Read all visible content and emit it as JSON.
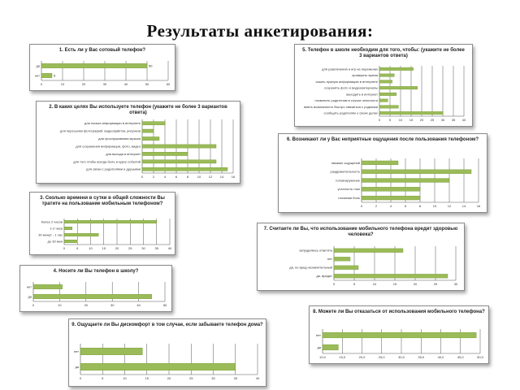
{
  "page": {
    "title": "Результаты анкетирования:"
  },
  "colors": {
    "bar_fill": "#9bbb59",
    "bar_stroke": "#6f9a2f",
    "grid": "#555555",
    "text": "#222222"
  },
  "chart_data": [
    {
      "type": "bar",
      "orientation": "horizontal",
      "title": "1. Есть ли у Вас сотовый телефон?",
      "categories": [
        "нет",
        "да"
      ],
      "values": [
        5,
        50
      ],
      "data_labels": [
        "5",
        "50"
      ],
      "xlim": [
        0,
        60
      ],
      "xticks": [
        "0",
        "10",
        "20",
        "30",
        "40",
        "50",
        "60"
      ],
      "grid": true
    },
    {
      "type": "bar",
      "orientation": "horizontal",
      "title": "2. В каких целях Вы используете телефон (укажите не более 3 вариантов ответа)",
      "categories": [
        "для связи с родителями и друзьями",
        "для того чтобы всегда быть в курсе событий",
        "для выхода в интернет",
        "для сохранения информации, фото, видео",
        "для прослушивания музыки",
        "для пересылки фотографий, видеофайлов, рисунков",
        "для поиска информации в интернете"
      ],
      "values": [
        15,
        13,
        8,
        13,
        3,
        2,
        4
      ],
      "xlim": [
        0,
        16
      ],
      "xticks": [
        "0",
        "2",
        "4",
        "6",
        "8",
        "10",
        "12",
        "14",
        "16"
      ],
      "grid": true
    },
    {
      "type": "bar",
      "orientation": "horizontal",
      "title": "3. Сколько времени в сутки в общей сложности Вы тратите на пользование мобильным телефоном?",
      "categories": [
        "до 30 мин",
        "30 минут - 1 час",
        "1-2 часа",
        "более 2 часов"
      ],
      "values": [
        5,
        13,
        3,
        35
      ],
      "xlim": [
        0,
        40
      ],
      "xticks": [
        "0",
        "5",
        "10",
        "15",
        "20",
        "25",
        "30",
        "35",
        "40"
      ],
      "grid": true
    },
    {
      "type": "bar",
      "orientation": "horizontal",
      "title": "4. Носите ли Вы телефон в школу?",
      "categories": [
        "да",
        "нет"
      ],
      "values": [
        45,
        11
      ],
      "xlim": [
        0,
        50
      ],
      "xticks": [
        "0",
        "10",
        "20",
        "30",
        "40",
        "50"
      ],
      "grid": true
    },
    {
      "type": "bar",
      "orientation": "horizontal",
      "title": "5. Телефон в школе необходим для того, чтобы: (укажите не более 3 вариантов ответа)",
      "categories": [
        "сообщить родителям о своих делах",
        "иметь возможность быстро связаться с родными",
        "позвонить родителям в случае опасности",
        "выходить в интернет",
        "сохранять фото и видеоматериалы",
        "искать нужную информацию в интернете",
        "проверять время",
        "для развлечения и игр на переменах"
      ],
      "values": [
        30,
        9,
        4,
        8,
        18,
        6,
        7,
        16
      ],
      "xlim": [
        0,
        40
      ],
      "xticks": [
        "0",
        "5",
        "10",
        "15",
        "20",
        "25",
        "30",
        "35",
        "40"
      ],
      "grid": true
    },
    {
      "type": "bar",
      "orientation": "horizontal",
      "title": "6. Возникают ли у Вас неприятные ощущения после пользования телефоном?",
      "categories": [
        "головная боль",
        "усталость глаз",
        "головокружение",
        "раздражительность",
        "никаких ощущений"
      ],
      "values": [
        8,
        8,
        12,
        15,
        5
      ],
      "xlim": [
        0,
        16
      ],
      "xticks": [
        "0",
        "2",
        "4",
        "6",
        "8",
        "10",
        "12",
        "14",
        "16"
      ],
      "grid": true
    },
    {
      "type": "bar",
      "orientation": "horizontal",
      "title": "7. Считаете ли Вы, что использование мобильного телефона вредит здоровью человека?",
      "categories": [
        "да, вредит",
        "да, но вред незначительный",
        "нет",
        "затрудняюсь ответить"
      ],
      "values": [
        28,
        6,
        4,
        17
      ],
      "xlim": [
        0,
        30
      ],
      "xticks": [
        "0",
        "5",
        "10",
        "15",
        "20",
        "25",
        "30"
      ],
      "grid": true
    },
    {
      "type": "bar",
      "orientation": "horizontal",
      "title": "8. Можете ли Вы отказаться от использования мобильного телефона?",
      "categories": [
        "да",
        "нет"
      ],
      "values": [
        14,
        49
      ],
      "xlim": [
        10,
        50
      ],
      "xticks": [
        "10,0",
        "15,0",
        "20,0",
        "25,0",
        "30,0",
        "35,0",
        "40,0",
        "45,0",
        "50,0"
      ],
      "grid": true
    },
    {
      "type": "bar",
      "orientation": "horizontal",
      "title": "9. Ощущаете ли Вы дискомфорт в том случае, если забываете телефон дома?",
      "categories": [
        "да",
        "нет"
      ],
      "values": [
        35,
        14
      ],
      "xlim": [
        0,
        40
      ],
      "xticks": [
        "0",
        "5",
        "10",
        "15",
        "20",
        "25",
        "30",
        "35",
        "40"
      ],
      "grid": true
    }
  ]
}
